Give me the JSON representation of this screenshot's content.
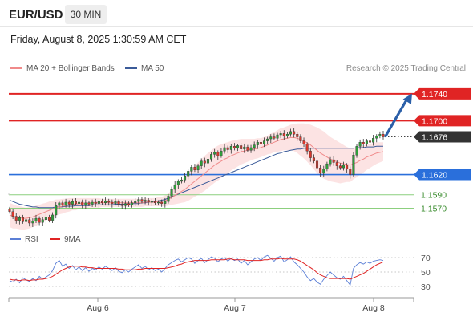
{
  "header": {
    "symbol": "EUR/USD",
    "timeframe": "30 MIN",
    "datetime": "Friday, August 8, 2025 1:30:59 AM CET"
  },
  "legend": {
    "ma20_label": "MA 20 + Bollinger Bands",
    "ma50_label": "MA 50",
    "research": "Research © 2025 Trading Central",
    "rsi_label": "RSI",
    "ma9_label": "9MA"
  },
  "colors": {
    "resistance": "#e02424",
    "support": "#2a6fdb",
    "minor_support": "#8ccf7e",
    "bull_candle": "#2e9e3a",
    "bear_candle": "#d9372c",
    "ma20": "#f08a8a",
    "ma50": "#3b5b99",
    "bollinger_fill": "#fbd9d9",
    "rsi_line": "#5b7fd6",
    "rsi_ma": "#e02424",
    "arrow": "#2b5fa8"
  },
  "chart_data": [
    {
      "type": "candlestick",
      "x_ticks": [
        "Aug 6",
        "Aug 7",
        "Aug 8"
      ],
      "ylim": [
        1.1548,
        1.1766
      ],
      "current_price": "1.1676",
      "levels": [
        {
          "label": "1.1740",
          "value": 1.174,
          "kind": "resistance"
        },
        {
          "label": "1.1700",
          "value": 1.17,
          "kind": "resistance"
        },
        {
          "label": "1.1620",
          "value": 1.162,
          "kind": "support"
        },
        {
          "label": "1.1590",
          "value": 1.159,
          "kind": "minor_support"
        },
        {
          "label": "1.1570",
          "value": 1.157,
          "kind": "minor_support"
        }
      ],
      "close": [
        1.1565,
        1.1558,
        1.1552,
        1.1556,
        1.155,
        1.1553,
        1.1548,
        1.1551,
        1.1555,
        1.1549,
        1.1553,
        1.1557,
        1.1552,
        1.156,
        1.1574,
        1.1578,
        1.1575,
        1.1579,
        1.1576,
        1.158,
        1.1577,
        1.1579,
        1.1575,
        1.1578,
        1.1576,
        1.1579,
        1.1577,
        1.158,
        1.1578,
        1.1581,
        1.1579,
        1.1577,
        1.158,
        1.1576,
        1.1574,
        1.1577,
        1.1575,
        1.1578,
        1.158,
        1.1583,
        1.158,
        1.1582,
        1.1579,
        1.158,
        1.1578,
        1.1579,
        1.1577,
        1.158,
        1.1588,
        1.1598,
        1.1605,
        1.161,
        1.1612,
        1.1618,
        1.1625,
        1.1631,
        1.1627,
        1.1633,
        1.164,
        1.1637,
        1.1643,
        1.165,
        1.1653,
        1.1648,
        1.1655,
        1.166,
        1.1657,
        1.1662,
        1.1659,
        1.1663,
        1.1658,
        1.1661,
        1.1656,
        1.166,
        1.1664,
        1.1668,
        1.1665,
        1.167,
        1.1673,
        1.1676,
        1.1674,
        1.1679,
        1.1681,
        1.1677,
        1.168,
        1.1684,
        1.168,
        1.1676,
        1.167,
        1.1665,
        1.1655,
        1.1645,
        1.164,
        1.163,
        1.1622,
        1.1628,
        1.1636,
        1.1642,
        1.1638,
        1.1633,
        1.163,
        1.1634,
        1.1628,
        1.162,
        1.1649,
        1.1662,
        1.1668,
        1.1665,
        1.167,
        1.1668,
        1.1674,
        1.1677,
        1.168,
        1.1676
      ],
      "ma20": [
        1.156,
        1.1558,
        1.1557,
        1.1556,
        1.1555,
        1.1555,
        1.1556,
        1.1557,
        1.1559,
        1.1561,
        1.1563,
        1.1565,
        1.1567,
        1.1569,
        1.1571,
        1.1572,
        1.1573,
        1.1574,
        1.1575,
        1.1576,
        1.1576,
        1.1577,
        1.1577,
        1.1577,
        1.1578,
        1.1578,
        1.1578,
        1.1578,
        1.1578,
        1.1578,
        1.1578,
        1.1578,
        1.1578,
        1.1578,
        1.1578,
        1.1578,
        1.1578,
        1.1578,
        1.1578,
        1.1578,
        1.1578,
        1.1579,
        1.1579,
        1.1579,
        1.1579,
        1.158,
        1.158,
        1.1581,
        1.1583,
        1.1586,
        1.1589,
        1.1592,
        1.1595,
        1.1598,
        1.1602,
        1.1606,
        1.161,
        1.1614,
        1.1618,
        1.1622,
        1.1626,
        1.163,
        1.1634,
        1.1637,
        1.164,
        1.1643,
        1.1645,
        1.1648,
        1.165,
        1.1652,
        1.1654,
        1.1655,
        1.1656,
        1.1657,
        1.1658,
        1.1659,
        1.166,
        1.1662,
        1.1664,
        1.1666,
        1.1668,
        1.167,
        1.1672,
        1.1673,
        1.1674,
        1.1675,
        1.1675,
        1.1674,
        1.1672,
        1.167,
        1.1667,
        1.1664,
        1.166,
        1.1656,
        1.1652,
        1.1649,
        1.1646,
        1.1643,
        1.1641,
        1.1639,
        1.1637,
        1.1636,
        1.1635,
        1.1634,
        1.1636,
        1.1638,
        1.1641,
        1.1643,
        1.1646,
        1.1648,
        1.165,
        1.1652,
        1.1653,
        1.1654
      ],
      "ma50": [
        1.1582,
        1.158,
        1.1578,
        1.1576,
        1.1575,
        1.1574,
        1.1573,
        1.1572,
        1.1572,
        1.1571,
        1.1571,
        1.1571,
        1.1571,
        1.1571,
        1.1572,
        1.1572,
        1.1572,
        1.1573,
        1.1573,
        1.1573,
        1.1574,
        1.1574,
        1.1574,
        1.1574,
        1.1574,
        1.1575,
        1.1575,
        1.1575,
        1.1575,
        1.1575,
        1.1575,
        1.1575,
        1.1576,
        1.1576,
        1.1576,
        1.1576,
        1.1576,
        1.1577,
        1.1577,
        1.1577,
        1.1578,
        1.1578,
        1.1579,
        1.1579,
        1.158,
        1.1581,
        1.1582,
        1.1583,
        1.1585,
        1.1587,
        1.1589,
        1.1591,
        1.1593,
        1.1595,
        1.1597,
        1.1599,
        1.1601,
        1.1603,
        1.1605,
        1.1607,
        1.1609,
        1.1611,
        1.1613,
        1.1615,
        1.1617,
        1.1619,
        1.1621,
        1.1623,
        1.1625,
        1.1627,
        1.1629,
        1.1631,
        1.1633,
        1.1635,
        1.1637,
        1.1639,
        1.1641,
        1.1643,
        1.1645,
        1.1647,
        1.1649,
        1.1651,
        1.1652,
        1.1654,
        1.1655,
        1.1656,
        1.1657,
        1.1658,
        1.1658,
        1.1659,
        1.1659,
        1.1659,
        1.1659,
        1.1659,
        1.1659,
        1.1659,
        1.1659,
        1.1659,
        1.1659,
        1.1659,
        1.1659,
        1.1659,
        1.1659,
        1.1659,
        1.1659,
        1.166,
        1.166,
        1.166,
        1.1661,
        1.1661,
        1.1661,
        1.1662,
        1.1662,
        1.1662
      ],
      "bb_width": [
        0.0018,
        0.0018,
        0.0017,
        0.0017,
        0.0017,
        0.0016,
        0.0016,
        0.0015,
        0.0015,
        0.0014,
        0.0014,
        0.0013,
        0.0013,
        0.0012,
        0.0012,
        0.0011,
        0.0011,
        0.001,
        0.001,
        0.0009,
        0.0009,
        0.0008,
        0.0008,
        0.0008,
        0.0007,
        0.0007,
        0.0007,
        0.0007,
        0.0006,
        0.0006,
        0.0006,
        0.0006,
        0.0006,
        0.0006,
        0.0006,
        0.0006,
        0.0006,
        0.0006,
        0.0006,
        0.0006,
        0.0006,
        0.0006,
        0.0006,
        0.0006,
        0.0006,
        0.0007,
        0.0007,
        0.0008,
        0.0009,
        0.0011,
        0.0013,
        0.0015,
        0.0017,
        0.0019,
        0.0021,
        0.0022,
        0.0023,
        0.0024,
        0.0025,
        0.0026,
        0.0026,
        0.0026,
        0.0026,
        0.0026,
        0.0025,
        0.0024,
        0.0023,
        0.0022,
        0.0021,
        0.002,
        0.0019,
        0.0018,
        0.0017,
        0.0016,
        0.0015,
        0.0015,
        0.0014,
        0.0014,
        0.0014,
        0.0015,
        0.0015,
        0.0016,
        0.0017,
        0.0017,
        0.0018,
        0.0019,
        0.002,
        0.0022,
        0.0024,
        0.0026,
        0.0028,
        0.003,
        0.0032,
        0.0034,
        0.0035,
        0.0035,
        0.0034,
        0.0033,
        0.0032,
        0.0031,
        0.003,
        0.0028,
        0.0026,
        0.0025,
        0.0023,
        0.0022,
        0.0021,
        0.002,
        0.0019,
        0.0018,
        0.0017,
        0.0016,
        0.0015,
        0.0014
      ]
    },
    {
      "type": "line",
      "name": "RSI",
      "ylim": [
        20,
        80
      ],
      "y_ticks": [
        70,
        50,
        30
      ],
      "rsi": [
        38,
        36,
        40,
        35,
        42,
        39,
        37,
        41,
        38,
        44,
        40,
        43,
        46,
        52,
        62,
        66,
        58,
        61,
        55,
        59,
        53,
        57,
        52,
        56,
        51,
        55,
        53,
        57,
        54,
        58,
        55,
        52,
        56,
        51,
        49,
        53,
        50,
        54,
        57,
        60,
        55,
        58,
        53,
        56,
        52,
        54,
        50,
        55,
        60,
        63,
        66,
        68,
        64,
        67,
        70,
        68,
        62,
        66,
        69,
        63,
        67,
        71,
        69,
        64,
        68,
        70,
        65,
        69,
        66,
        68,
        62,
        66,
        60,
        64,
        68,
        70,
        66,
        71,
        73,
        69,
        65,
        70,
        72,
        64,
        67,
        71,
        64,
        60,
        55,
        50,
        43,
        38,
        41,
        36,
        33,
        40,
        45,
        50,
        46,
        42,
        40,
        44,
        38,
        32,
        55,
        60,
        63,
        61,
        64,
        62,
        65,
        66,
        67,
        66
      ],
      "ma9": [
        40,
        39,
        39,
        38,
        39,
        39,
        38,
        39,
        39,
        40,
        40,
        41,
        42,
        44,
        47,
        50,
        53,
        55,
        57,
        58,
        58,
        58,
        57,
        57,
        56,
        56,
        55,
        55,
        55,
        55,
        55,
        55,
        55,
        54,
        54,
        53,
        53,
        53,
        53,
        54,
        54,
        55,
        55,
        55,
        55,
        55,
        55,
        55,
        56,
        57,
        58,
        60,
        61,
        63,
        64,
        65,
        66,
        66,
        66,
        66,
        66,
        67,
        67,
        67,
        67,
        67,
        68,
        68,
        67,
        67,
        67,
        67,
        66,
        66,
        66,
        66,
        66,
        67,
        67,
        68,
        68,
        68,
        69,
        68,
        68,
        68,
        68,
        67,
        65,
        62,
        59,
        56,
        53,
        49,
        46,
        44,
        42,
        41,
        41,
        41,
        41,
        41,
        41,
        40,
        42,
        44,
        46,
        48,
        51,
        54,
        57,
        60,
        62,
        64
      ]
    }
  ]
}
